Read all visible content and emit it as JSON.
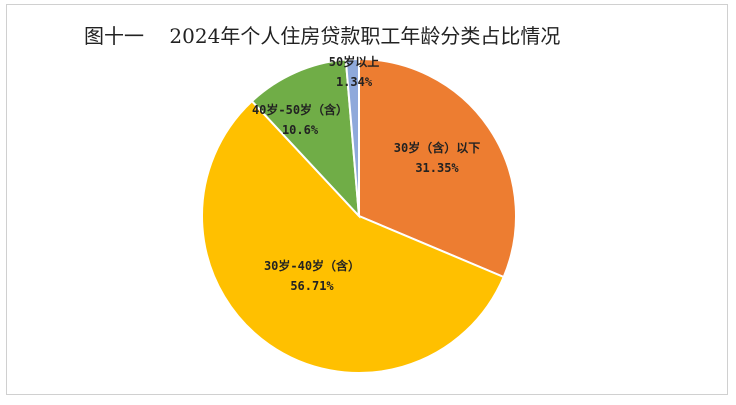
{
  "chart_data": {
    "type": "pie",
    "title": "图十一    2024年个人住房贷款职工年龄分类占比情况",
    "start_angle_deg": 0,
    "direction": "clockwise",
    "slices": [
      {
        "label": "30岁（含）以下",
        "value": 31.35,
        "value_label": "31.35%",
        "color": "#ED7D31"
      },
      {
        "label": "30岁-40岁（含）",
        "value": 56.71,
        "value_label": "56.71%",
        "color": "#FFC000"
      },
      {
        "label": "40岁-50岁（含）",
        "value": 10.6,
        "value_label": "10.6%",
        "color": "#70AD47"
      },
      {
        "label": "50岁以上",
        "value": 1.34,
        "value_label": "1.34%",
        "color": "#8EA9DB"
      }
    ]
  }
}
